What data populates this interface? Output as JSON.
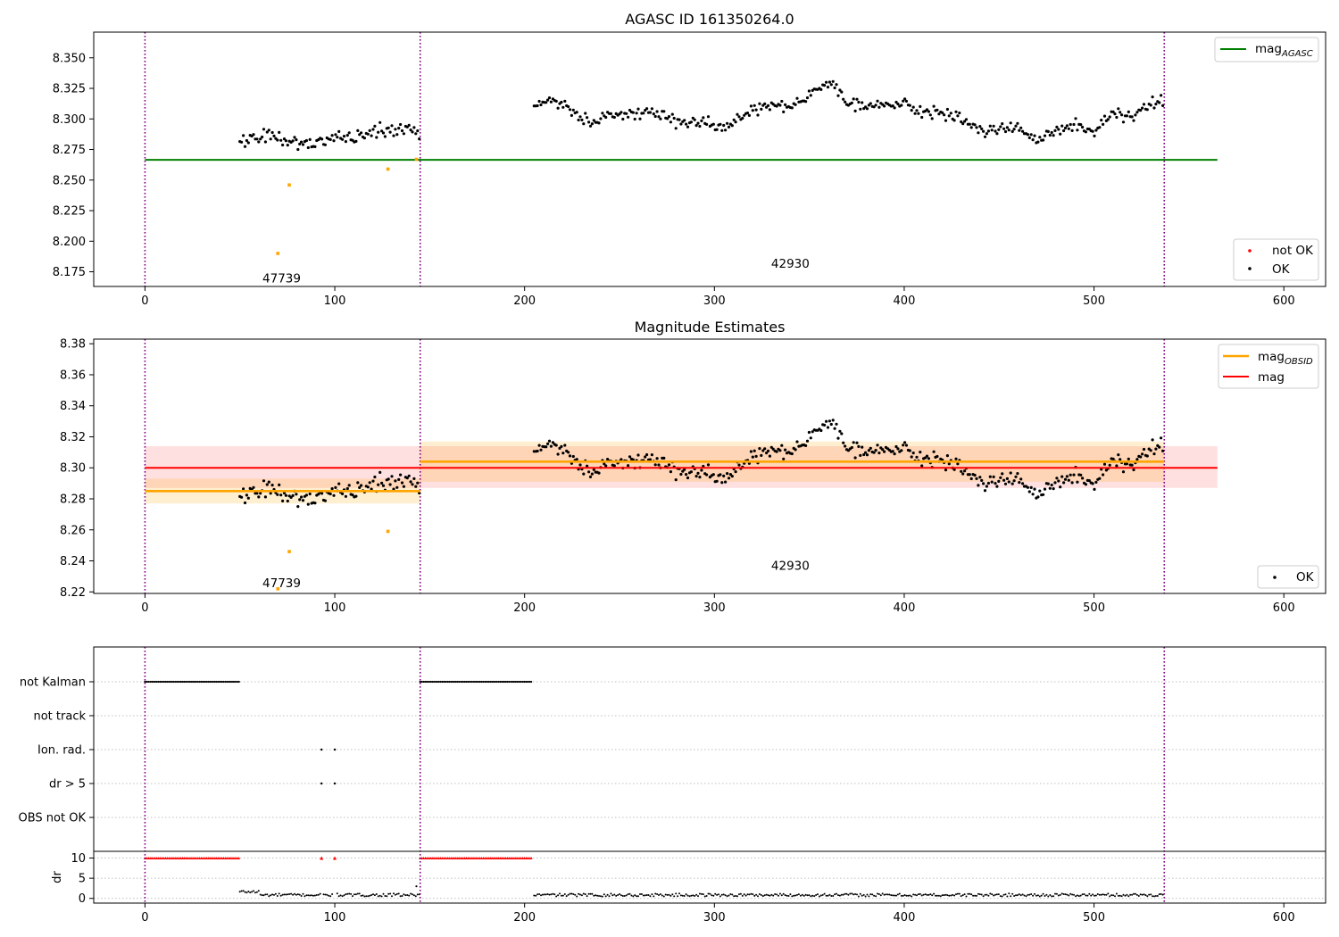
{
  "chart_data": [
    {
      "type": "scatter",
      "title": "AGASC ID 161350264.0",
      "xlim": [
        -27,
        622
      ],
      "ylim": [
        8.163,
        8.371
      ],
      "xticks": [
        0,
        100,
        200,
        300,
        400,
        500,
        600
      ],
      "yticks": [
        8.175,
        8.2,
        8.225,
        8.25,
        8.275,
        8.3,
        8.325,
        8.35
      ],
      "ytick_labels": [
        "8.175",
        "8.200",
        "8.225",
        "8.250",
        "8.275",
        "8.300",
        "8.325",
        "8.350"
      ],
      "legend_upper": {
        "position": "top-right",
        "entries": [
          {
            "label": "mag",
            "sub": "AGASC",
            "color": "#008000"
          }
        ]
      },
      "legend_lower": {
        "position": "bottom-right",
        "entries": [
          {
            "label": "not OK",
            "color": "#ff0000"
          },
          {
            "label": "OK",
            "color": "#000000"
          }
        ]
      },
      "hlines": [
        {
          "name": "mag_AGASC",
          "y": 8.2665,
          "x0": 0,
          "x1": 565,
          "color": "#008000"
        }
      ],
      "obs_boundaries": [
        0,
        145,
        537
      ],
      "annotations": [
        {
          "text": "47739",
          "x": 72,
          "y": 8.17
        },
        {
          "text": "42930",
          "x": 340,
          "y": 8.182
        }
      ],
      "outliers": [
        {
          "x": 70,
          "y": 8.19
        },
        {
          "x": 76,
          "y": 8.246
        },
        {
          "x": 128,
          "y": 8.259
        },
        {
          "x": 143,
          "y": 8.267
        }
      ],
      "series_ok": [
        {
          "x_start": 50,
          "x_end": 145,
          "levels": [
            [
              50,
              8.281
            ],
            [
              60,
              8.288
            ],
            [
              70,
              8.283
            ],
            [
              80,
              8.281
            ],
            [
              90,
              8.279
            ],
            [
              100,
              8.287
            ],
            [
              110,
              8.284
            ],
            [
              120,
              8.29
            ],
            [
              130,
              8.29
            ],
            [
              140,
              8.293
            ],
            [
              145,
              8.288
            ]
          ],
          "noise": 0.006
        },
        {
          "x_start": 205,
          "x_end": 537,
          "levels": [
            [
              205,
              8.311
            ],
            [
              215,
              8.315
            ],
            [
              225,
              8.306
            ],
            [
              235,
              8.297
            ],
            [
              245,
              8.305
            ],
            [
              255,
              8.302
            ],
            [
              265,
              8.307
            ],
            [
              275,
              8.301
            ],
            [
              285,
              8.296
            ],
            [
              295,
              8.3
            ],
            [
              305,
              8.292
            ],
            [
              315,
              8.303
            ],
            [
              325,
              8.311
            ],
            [
              335,
              8.31
            ],
            [
              345,
              8.314
            ],
            [
              355,
              8.323
            ],
            [
              362,
              8.331
            ],
            [
              370,
              8.313
            ],
            [
              380,
              8.312
            ],
            [
              390,
              8.311
            ],
            [
              400,
              8.315
            ],
            [
              410,
              8.304
            ],
            [
              420,
              8.306
            ],
            [
              430,
              8.302
            ],
            [
              440,
              8.29
            ],
            [
              450,
              8.291
            ],
            [
              460,
              8.293
            ],
            [
              470,
              8.282
            ],
            [
              480,
              8.29
            ],
            [
              490,
              8.297
            ],
            [
              500,
              8.289
            ],
            [
              510,
              8.306
            ],
            [
              520,
              8.301
            ],
            [
              530,
              8.313
            ],
            [
              537,
              8.315
            ]
          ],
          "noise": 0.005
        }
      ]
    },
    {
      "type": "scatter",
      "title": "Magnitude Estimates",
      "xlim": [
        -27,
        622
      ],
      "ylim": [
        8.219,
        8.383
      ],
      "xticks": [
        0,
        100,
        200,
        300,
        400,
        500,
        600
      ],
      "yticks": [
        8.22,
        8.24,
        8.26,
        8.28,
        8.3,
        8.32,
        8.34,
        8.36,
        8.38
      ],
      "ytick_labels": [
        "8.22",
        "8.24",
        "8.26",
        "8.28",
        "8.30",
        "8.32",
        "8.34",
        "8.36",
        "8.38"
      ],
      "legend_upper": {
        "position": "top-right",
        "entries": [
          {
            "label": "mag",
            "sub": "OBSID",
            "color": "#ffa500"
          },
          {
            "label": "mag",
            "color": "#ff0000"
          }
        ]
      },
      "legend_lower": {
        "position": "bottom-right",
        "entries": [
          {
            "label": "OK",
            "color": "#000000"
          }
        ]
      },
      "hlines": [
        {
          "name": "mag",
          "y": 8.3,
          "x0": 0,
          "x1": 565,
          "color": "#ff0000",
          "band": [
            8.287,
            8.314
          ]
        },
        {
          "name": "mag_OBSID_47739",
          "y": 8.285,
          "x0": 0,
          "x1": 145,
          "color": "#ffa500",
          "band": [
            8.277,
            8.293
          ]
        },
        {
          "name": "mag_OBSID_42930",
          "y": 8.304,
          "x0": 145,
          "x1": 537,
          "color": "#ffa500",
          "band": [
            8.291,
            8.317
          ]
        }
      ],
      "obs_boundaries": [
        0,
        145,
        537
      ],
      "annotations": [
        {
          "text": "47739",
          "x": 72,
          "y": 8.226
        },
        {
          "text": "42930",
          "x": 340,
          "y": 8.237
        }
      ],
      "outliers": [
        {
          "x": 70,
          "y": 8.222
        },
        {
          "x": 76,
          "y": 8.246
        },
        {
          "x": 128,
          "y": 8.259
        }
      ]
    },
    {
      "type": "scatter",
      "title": "",
      "xlim": [
        -27,
        622
      ],
      "xticks": [
        0,
        100,
        200,
        300,
        400,
        500,
        600
      ],
      "flag_rows": [
        "not Kalman",
        "not track",
        "Ion. rad.",
        "dr > 5",
        "OBS not OK"
      ],
      "flags": {
        "not Kalman": [
          [
            0,
            50
          ],
          [
            145,
            204
          ]
        ],
        "not track": [],
        "Ion. rad.": [
          93,
          100
        ],
        "dr > 5": [
          93,
          100
        ],
        "OBS not OK": []
      },
      "dr_panel": {
        "ylabel": "dr",
        "ylim": [
          -0.5,
          11
        ],
        "yticks": [
          0,
          5,
          10
        ],
        "dr_gt_10_marked_at": 10,
        "dr_gt_10_ranges": [
          [
            0,
            50
          ],
          [
            145,
            204
          ]
        ],
        "dr_gt_10_points": [
          93,
          100
        ],
        "typical_dr": 0.8
      },
      "obs_boundaries": [
        0,
        145,
        537
      ]
    }
  ]
}
